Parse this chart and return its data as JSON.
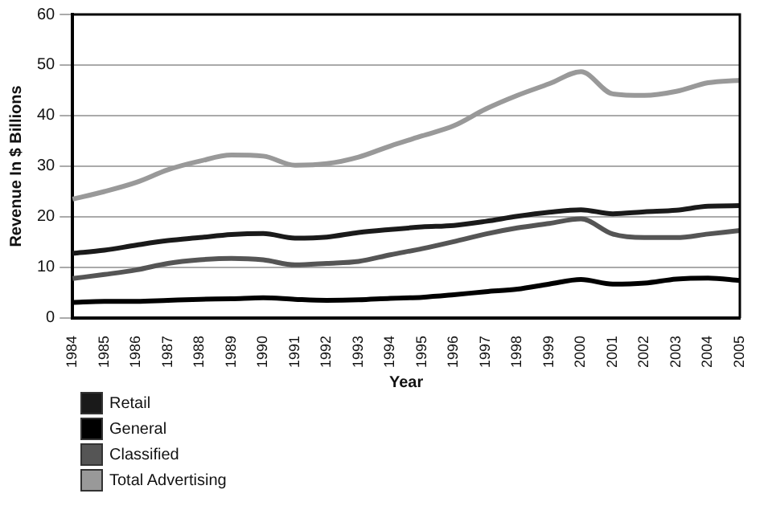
{
  "chart_data": {
    "type": "line",
    "xlabel": "Year",
    "ylabel": "Revenue In $ Billions",
    "categories": [
      "1984",
      "1985",
      "1986",
      "1987",
      "1988",
      "1989",
      "1990",
      "1991",
      "1992",
      "1993",
      "1994",
      "1995",
      "1996",
      "1997",
      "1998",
      "1999",
      "2000",
      "2001",
      "2002",
      "2003",
      "2004",
      "2005"
    ],
    "series": [
      {
        "name": "Retail",
        "color": "#1a1a1a",
        "values": [
          12.8,
          13.4,
          14.4,
          15.3,
          15.9,
          16.5,
          16.7,
          15.8,
          16,
          16.9,
          17.5,
          18,
          18.3,
          19.1,
          20.1,
          20.9,
          21.4,
          20.6,
          21,
          21.3,
          22.1,
          22.2
        ]
      },
      {
        "name": "General",
        "color": "#000000",
        "values": [
          3.1,
          3.3,
          3.3,
          3.5,
          3.7,
          3.8,
          4,
          3.7,
          3.5,
          3.6,
          3.9,
          4.1,
          4.6,
          5.2,
          5.7,
          6.7,
          7.6,
          6.7,
          6.9,
          7.7,
          7.9,
          7.4
        ]
      },
      {
        "name": "Classified",
        "color": "#555555",
        "values": [
          7.8,
          8.6,
          9.5,
          10.8,
          11.5,
          11.8,
          11.5,
          10.5,
          10.8,
          11.2,
          12.5,
          13.7,
          15.1,
          16.6,
          17.8,
          18.7,
          19.6,
          16.6,
          15.9,
          15.9,
          16.6,
          17.3
        ]
      },
      {
        "name": "Total Advertising",
        "color": "#999999",
        "values": [
          23.5,
          25,
          26.8,
          29.3,
          31,
          32.2,
          32,
          30.2,
          30.5,
          31.8,
          34,
          36,
          38,
          41.3,
          44,
          46.3,
          48.7,
          44.3,
          44,
          44.8,
          46.5,
          47
        ]
      }
    ],
    "ylim": [
      0,
      60
    ],
    "yticks": [
      0,
      10,
      20,
      30,
      40,
      50,
      60
    ],
    "grid": "y",
    "legend": "bottom left",
    "marker": "none",
    "line_style": "solid"
  }
}
